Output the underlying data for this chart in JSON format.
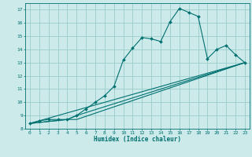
{
  "xlabel": "Humidex (Indice chaleur)",
  "bg_color": "#cceaea",
  "line_color": "#007070",
  "grid_color": "#99cccc",
  "xlim": [
    -0.5,
    23.5
  ],
  "ylim": [
    8.0,
    17.5
  ],
  "yticks": [
    8,
    9,
    10,
    11,
    12,
    13,
    14,
    15,
    16,
    17
  ],
  "xticks": [
    0,
    1,
    2,
    3,
    4,
    5,
    6,
    7,
    8,
    9,
    10,
    11,
    12,
    13,
    14,
    15,
    16,
    17,
    18,
    19,
    20,
    21,
    22,
    23
  ],
  "line1_x": [
    0,
    1,
    2,
    3,
    4,
    5,
    6,
    7,
    8,
    9,
    10,
    11,
    12,
    13,
    14,
    15,
    16,
    17,
    18,
    19,
    20,
    21,
    22,
    23
  ],
  "line1_y": [
    8.4,
    8.6,
    8.7,
    8.7,
    8.7,
    9.0,
    9.5,
    10.0,
    10.5,
    11.2,
    13.2,
    14.1,
    14.9,
    14.8,
    14.6,
    16.1,
    17.1,
    16.8,
    16.5,
    13.3,
    14.0,
    14.3,
    13.6,
    13.0
  ],
  "line2_x": [
    0,
    23
  ],
  "line2_y": [
    8.4,
    13.0
  ],
  "line3_x": [
    0,
    4,
    5,
    23
  ],
  "line3_y": [
    8.4,
    8.7,
    9.0,
    13.0
  ],
  "line4_x": [
    0,
    4,
    5,
    23
  ],
  "line4_y": [
    8.4,
    8.7,
    8.7,
    13.0
  ]
}
